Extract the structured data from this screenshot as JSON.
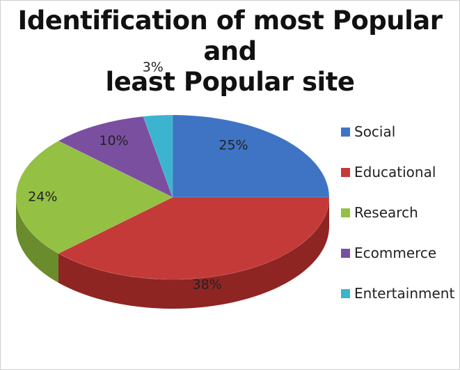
{
  "chart_data": {
    "type": "pie",
    "title_lines": [
      "Identification of most Popular and",
      "least Popular site"
    ],
    "categories": [
      "Social",
      "Educational",
      "Research",
      "Ecommerce",
      "Entertainment"
    ],
    "values": [
      25,
      38,
      24,
      10,
      3
    ],
    "labels": [
      "25%",
      "38%",
      "24%",
      "10%",
      "3%"
    ],
    "colors": [
      "#3f74c4",
      "#c43a38",
      "#94c043",
      "#7a4fa0",
      "#3cb4cf"
    ],
    "dark_colors": [
      "#2a528f",
      "#8e2523",
      "#6a8c2c",
      "#553670",
      "#2a8299"
    ],
    "legend_position": "right",
    "style": "3d"
  }
}
